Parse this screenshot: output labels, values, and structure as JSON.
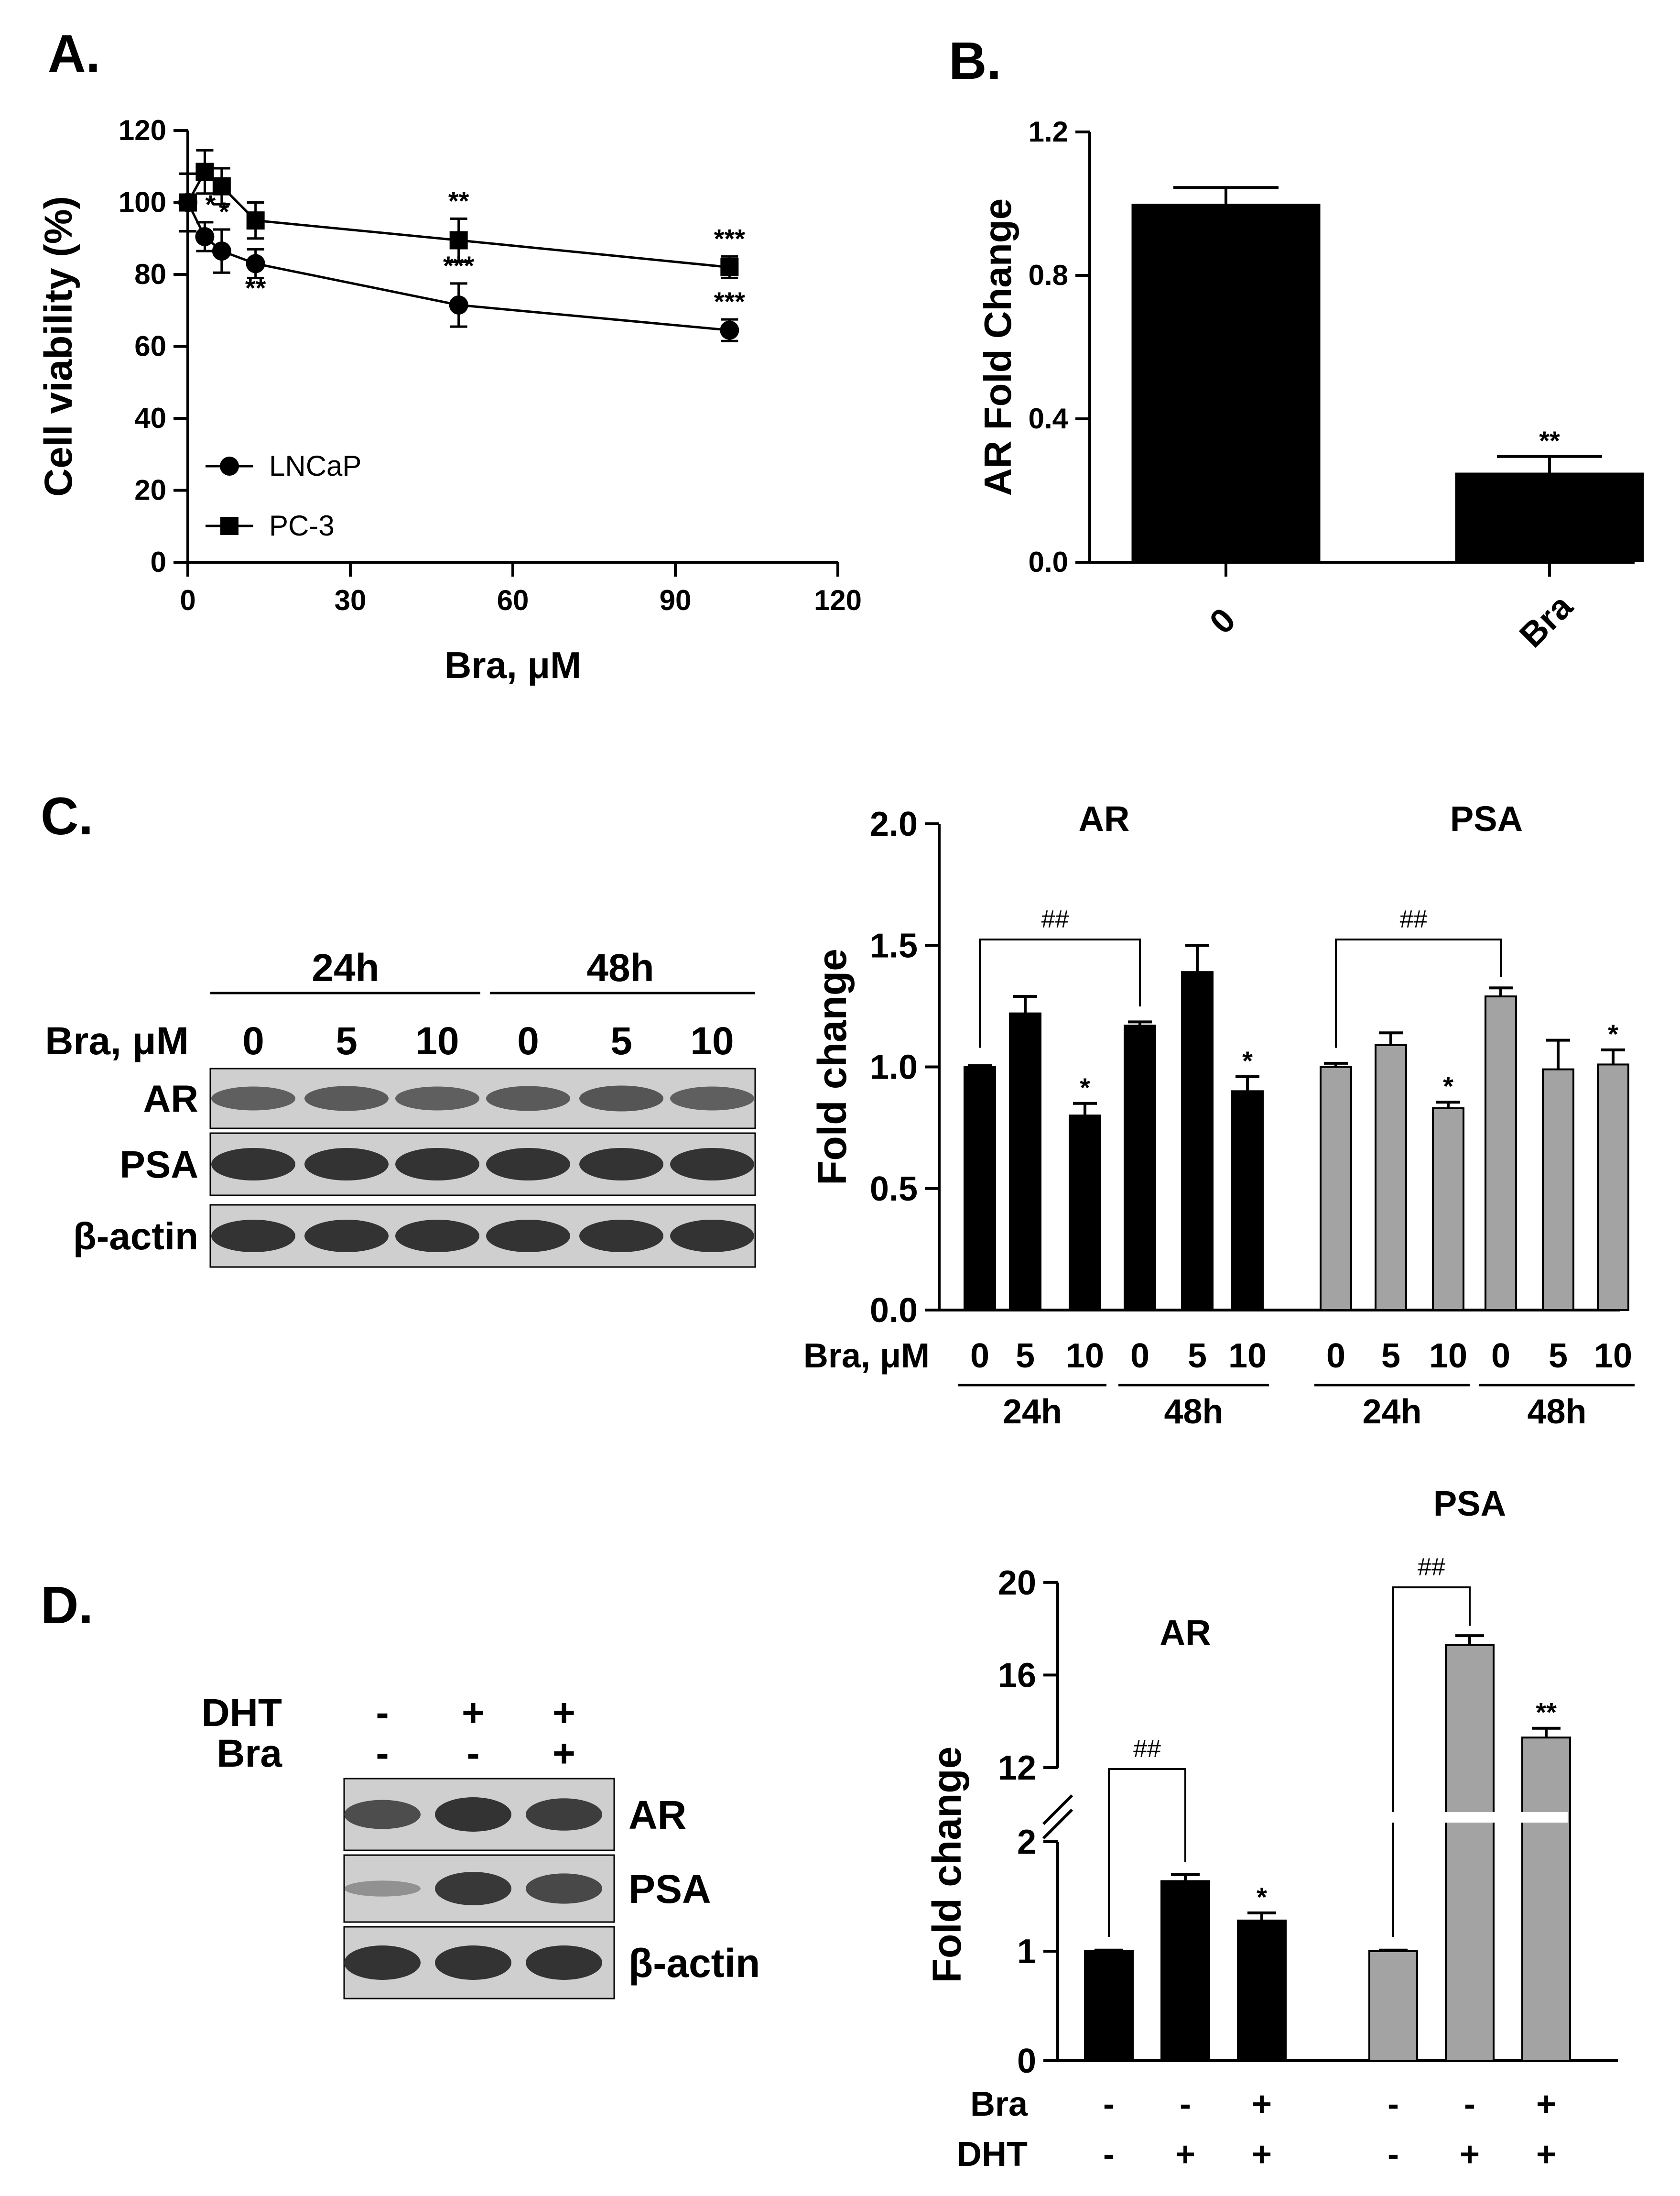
{
  "colors": {
    "ink": "#000000",
    "grey_bar": "#a3a3a3",
    "blot_bg": "#cfcfcf",
    "band": "#2a2a2a"
  },
  "chart_data": [
    {
      "panel": "A.",
      "type": "line",
      "xlabel": "Bra, μM",
      "ylabel": "Cell viability (%)",
      "xlim": [
        0,
        120
      ],
      "ylim": [
        0,
        120
      ],
      "xticks": [
        "0",
        "30",
        "60",
        "90",
        "120"
      ],
      "yticks": [
        "0",
        "20",
        "40",
        "60",
        "80",
        "100",
        "120"
      ],
      "legend": "bottom-left",
      "series": [
        {
          "name": "LNCaP",
          "marker": "circle",
          "x": [
            0,
            3.125,
            6.25,
            12.5,
            50,
            100
          ],
          "y": [
            100,
            90.5,
            86.5,
            83,
            71.5,
            64.5
          ],
          "err": [
            8,
            4,
            6,
            4,
            6,
            3
          ],
          "sig": [
            "",
            "*",
            "*",
            "**",
            "***",
            "***"
          ]
        },
        {
          "name": "PC-3",
          "marker": "square",
          "x": [
            0,
            3.125,
            6.25,
            12.5,
            50,
            100
          ],
          "y": [
            100,
            108.5,
            104.5,
            95,
            89.5,
            82
          ],
          "err": [
            8,
            6,
            5,
            5,
            6,
            3
          ],
          "sig": [
            "",
            "",
            "",
            "",
            "**",
            "***"
          ]
        }
      ]
    },
    {
      "panel": "B.",
      "type": "bar",
      "ylabel": "AR Fold Change",
      "ylim": [
        0,
        1.2
      ],
      "yticks": [
        "0.0",
        "0.4",
        "0.8",
        "1.2"
      ],
      "categories": [
        "0",
        "Bra"
      ],
      "values": [
        1.0,
        0.25
      ],
      "err": [
        0.045,
        0.045
      ],
      "sig": [
        "",
        "**"
      ]
    },
    {
      "panel": "C.",
      "type": "bar",
      "ylabel": "Fold change",
      "ylim": [
        0,
        2.0
      ],
      "yticks": [
        "0.0",
        "0.5",
        "1.0",
        "1.5",
        "2.0"
      ],
      "xrow_label": "Bra, μM",
      "groups": [
        {
          "name": "AR",
          "color": "black",
          "categories": [
            "0",
            "5",
            "10",
            "0",
            "5",
            "10"
          ],
          "timepoints": [
            "24h",
            "48h"
          ],
          "values": [
            1.0,
            1.22,
            0.8,
            1.17,
            1.39,
            0.9
          ],
          "err": [
            0.005,
            0.07,
            0.05,
            0.015,
            0.11,
            0.06
          ],
          "sig": [
            "",
            "",
            "*",
            "",
            "",
            "*"
          ],
          "bracket": "##"
        },
        {
          "name": "PSA",
          "color": "grey",
          "categories": [
            "0",
            "5",
            "10",
            "0",
            "5",
            "10"
          ],
          "timepoints": [
            "24h",
            "48h"
          ],
          "values": [
            1.0,
            1.09,
            0.83,
            1.29,
            0.99,
            1.01
          ],
          "err": [
            0.015,
            0.05,
            0.025,
            0.035,
            0.12,
            0.06
          ],
          "sig": [
            "",
            "",
            "*",
            "",
            "",
            "*"
          ],
          "bracket": "##"
        }
      ]
    },
    {
      "panel": "D.",
      "type": "bar",
      "ylabel": "Fold change",
      "axis_break": [
        2,
        12
      ],
      "yticks": [
        "0",
        "1",
        "2",
        "12",
        "16",
        "20"
      ],
      "rows": {
        "Bra": [
          "-",
          "-",
          "+",
          "-",
          "-",
          "+"
        ],
        "DHT": [
          "-",
          "+",
          "+",
          "-",
          "+",
          "+"
        ]
      },
      "groups": [
        {
          "name": "AR",
          "color": "black",
          "values": [
            1.0,
            1.64,
            1.28
          ],
          "err": [
            0.01,
            0.06,
            0.07
          ],
          "sig": [
            "",
            "",
            "*"
          ],
          "bracket": "##"
        },
        {
          "name": "PSA",
          "color": "grey",
          "values": [
            1.0,
            17.3,
            13.3
          ],
          "err": [
            0.01,
            0.4,
            0.4
          ],
          "sig": [
            "",
            "",
            "**"
          ],
          "bracket": "##"
        }
      ]
    }
  ],
  "blots": {
    "C": {
      "timepoints": [
        "24h",
        "48h"
      ],
      "conc_label": "Bra, μM",
      "lanes": [
        "0",
        "5",
        "10",
        "0",
        "5",
        "10"
      ],
      "proteins": [
        "AR",
        "PSA",
        "β-actin"
      ],
      "intensity": [
        [
          0.55,
          0.6,
          0.55,
          0.6,
          0.65,
          0.55
        ],
        [
          1,
          1,
          1,
          1,
          1,
          1
        ],
        [
          1,
          1,
          1,
          1,
          1,
          1
        ]
      ]
    },
    "D": {
      "rows": [
        {
          "label": "DHT",
          "values": [
            "-",
            "+",
            "+"
          ]
        },
        {
          "label": "Bra",
          "values": [
            "-",
            "-",
            "+"
          ]
        }
      ],
      "proteins": [
        "AR",
        "PSA",
        "β-actin"
      ],
      "intensity": [
        [
          0.75,
          1,
          0.9
        ],
        [
          0.12,
          0.95,
          0.8
        ],
        [
          1,
          1,
          1
        ]
      ]
    }
  }
}
